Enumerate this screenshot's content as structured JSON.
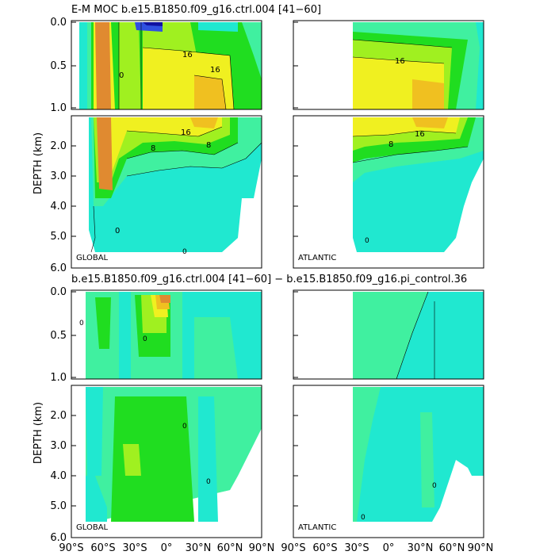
{
  "title_top": "E-M MOC   b.e15.B1850.f09_g16.ctrl.004  [41−60]",
  "title_bottom": "b.e15.B1850.f09_g16.ctrl.004 [41−60] − b.e15.B1850.f09_g16.pi_control.36",
  "ylabel": "DEPTH (km)",
  "basins": [
    "GLOBAL",
    "ATLANTIC"
  ],
  "colors": {
    "blue_dark": "#1010a0",
    "blue": "#3050e0",
    "cyan": "#20e8d0",
    "mint": "#40f0a0",
    "green": "#20dd20",
    "lime": "#a0f020",
    "yellow": "#f0f020",
    "gold": "#f0c020",
    "orange": "#e08a30"
  },
  "chart_data": [
    {
      "type": "heatmap",
      "panel": "control mean, global",
      "basin_label": "GLOBAL",
      "x_ticks": [
        "90°S",
        "60°S",
        "30°S",
        "0°",
        "30°N",
        "60°N",
        "90°N"
      ],
      "y_ticks_upper": [
        "0.0",
        "0.5",
        "1.0"
      ],
      "y_ticks_lower": [
        "2.0",
        "3.0",
        "4.0",
        "5.0",
        "6.0"
      ],
      "xlim": [
        -90,
        90
      ],
      "ylim_km": [
        0,
        6
      ],
      "contour_labels": [
        "16",
        "16",
        "16",
        "8",
        "8",
        "0",
        "0"
      ]
    },
    {
      "type": "heatmap",
      "panel": "control mean, atlantic",
      "basin_label": "ATLANTIC",
      "x_ticks": [
        "90°S",
        "60°S",
        "30°S",
        "0°",
        "30°N",
        "60°N",
        "90°N"
      ],
      "xlim": [
        -90,
        90
      ],
      "ylim_km": [
        0,
        6
      ],
      "contour_labels": [
        "16",
        "16",
        "8",
        "0"
      ]
    },
    {
      "type": "heatmap",
      "panel": "difference, global",
      "basin_label": "GLOBAL",
      "x_ticks": [
        "90°S",
        "60°S",
        "30°S",
        "0°",
        "30°N",
        "60°N",
        "90°N"
      ],
      "y_ticks_upper": [
        "0.0",
        "0.5",
        "1.0"
      ],
      "y_ticks_lower": [
        "2.0",
        "3.0",
        "4.0",
        "5.0",
        "6.0"
      ],
      "xlim": [
        -90,
        90
      ],
      "ylim_km": [
        0,
        6
      ],
      "contour_labels": [
        "0",
        "0",
        "0",
        "0"
      ]
    },
    {
      "type": "heatmap",
      "panel": "difference, atlantic",
      "basin_label": "ATLANTIC",
      "x_ticks": [
        "90°S",
        "60°S",
        "30°S",
        "0°",
        "30°N",
        "60°N",
        "90°N"
      ],
      "xlim": [
        -90,
        90
      ],
      "ylim_km": [
        0,
        6
      ],
      "contour_labels": [
        "0",
        "0",
        "0"
      ]
    }
  ]
}
